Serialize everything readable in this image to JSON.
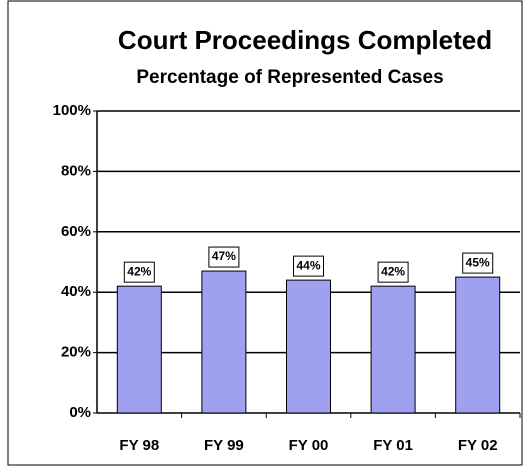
{
  "chart_data": {
    "type": "bar",
    "title": "Court Proceedings Completed",
    "subtitle": "Percentage of Represented Cases",
    "categories": [
      "FY 98",
      "FY 99",
      "FY 00",
      "FY 01",
      "FY 02"
    ],
    "values": [
      42,
      47,
      44,
      42,
      45
    ],
    "value_labels": [
      "42%",
      "47%",
      "44%",
      "42%",
      "45%"
    ],
    "color": "#a0a0f0",
    "ylim": [
      0,
      100
    ],
    "yticks": [
      {
        "value": 0,
        "label": "0%"
      },
      {
        "value": 20,
        "label": "20%"
      },
      {
        "value": 40,
        "label": "40%"
      },
      {
        "value": 60,
        "label": "60%"
      },
      {
        "value": 80,
        "label": "80%"
      },
      {
        "value": 100,
        "label": "100%"
      }
    ],
    "grid": true
  }
}
